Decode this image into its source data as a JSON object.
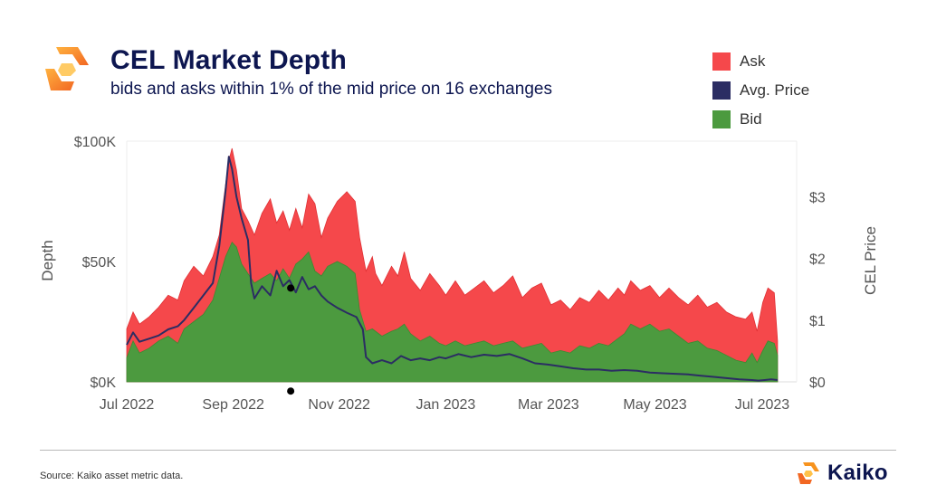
{
  "header": {
    "title": "CEL Market Depth",
    "subtitle": "bids and asks within 1% of the mid price on 16 exchanges"
  },
  "legend": [
    {
      "label": "Ask",
      "color": "#f5484b"
    },
    {
      "label": "Avg. Price",
      "color": "#2b2d63"
    },
    {
      "label": "Bid",
      "color": "#4c9a3f"
    }
  ],
  "footer": {
    "source": "Source: Kaiko asset metric data.",
    "brand": "Kaiko"
  },
  "chart_data": {
    "type": "area",
    "title": "CEL Market Depth",
    "subtitle": "bids and asks within 1% of the mid price on 16 exchanges",
    "ylabel": "Depth",
    "y2label": "CEL Price",
    "ylim": [
      0,
      100000
    ],
    "y2lim": [
      0,
      3.9
    ],
    "yticks": [
      {
        "value": 0,
        "label": "$0K"
      },
      {
        "value": 50000,
        "label": "$50K"
      },
      {
        "value": 100000,
        "label": "$100K"
      }
    ],
    "y2ticks": [
      {
        "value": 0,
        "label": "$0"
      },
      {
        "value": 1,
        "label": "$1"
      },
      {
        "value": 2,
        "label": "$2"
      },
      {
        "value": 3,
        "label": "$3"
      }
    ],
    "xlim": [
      2022.5,
      2023.55
    ],
    "xticks": [
      {
        "value": 2022.5,
        "label": "Jul 2022"
      },
      {
        "value": 2022.667,
        "label": "Sep 2022"
      },
      {
        "value": 2022.833,
        "label": "Nov 2022"
      },
      {
        "value": 2023.0,
        "label": "Jan 2023"
      },
      {
        "value": 2023.161,
        "label": "Mar 2023"
      },
      {
        "value": 2023.328,
        "label": "May 2023"
      },
      {
        "value": 2023.496,
        "label": "Jul 2023"
      }
    ],
    "series": [
      {
        "name": "Ask",
        "axis": "left",
        "color": "#f5484b",
        "points": [
          [
            2022.5,
            22000
          ],
          [
            2022.51,
            29000
          ],
          [
            2022.52,
            24000
          ],
          [
            2022.535,
            27000
          ],
          [
            2022.55,
            31000
          ],
          [
            2022.565,
            36000
          ],
          [
            2022.58,
            34000
          ],
          [
            2022.59,
            42000
          ],
          [
            2022.605,
            48000
          ],
          [
            2022.62,
            44000
          ],
          [
            2022.635,
            52000
          ],
          [
            2022.645,
            61000
          ],
          [
            2022.655,
            82000
          ],
          [
            2022.66,
            92000
          ],
          [
            2022.665,
            97000
          ],
          [
            2022.672,
            88000
          ],
          [
            2022.68,
            72000
          ],
          [
            2022.69,
            67000
          ],
          [
            2022.7,
            61000
          ],
          [
            2022.712,
            70000
          ],
          [
            2022.725,
            76000
          ],
          [
            2022.735,
            66000
          ],
          [
            2022.745,
            71000
          ],
          [
            2022.755,
            63000
          ],
          [
            2022.765,
            72000
          ],
          [
            2022.775,
            64000
          ],
          [
            2022.785,
            78000
          ],
          [
            2022.795,
            74000
          ],
          [
            2022.805,
            60000
          ],
          [
            2022.815,
            68000
          ],
          [
            2022.83,
            75000
          ],
          [
            2022.845,
            79000
          ],
          [
            2022.858,
            75000
          ],
          [
            2022.865,
            60000
          ],
          [
            2022.875,
            46000
          ],
          [
            2022.885,
            52000
          ],
          [
            2022.89,
            45000
          ],
          [
            2022.9,
            40000
          ],
          [
            2022.915,
            48000
          ],
          [
            2022.925,
            44000
          ],
          [
            2022.935,
            54000
          ],
          [
            2022.945,
            43000
          ],
          [
            2022.96,
            38000
          ],
          [
            2022.975,
            45000
          ],
          [
            2022.99,
            40000
          ],
          [
            2023.0,
            36000
          ],
          [
            2023.015,
            42000
          ],
          [
            2023.03,
            36000
          ],
          [
            2023.045,
            39000
          ],
          [
            2023.06,
            42000
          ],
          [
            2023.075,
            37000
          ],
          [
            2023.09,
            40000
          ],
          [
            2023.105,
            44000
          ],
          [
            2023.12,
            35000
          ],
          [
            2023.135,
            39000
          ],
          [
            2023.15,
            41000
          ],
          [
            2023.165,
            32000
          ],
          [
            2023.18,
            34000
          ],
          [
            2023.195,
            30000
          ],
          [
            2023.21,
            35000
          ],
          [
            2023.225,
            33000
          ],
          [
            2023.24,
            38000
          ],
          [
            2023.255,
            34000
          ],
          [
            2023.27,
            39000
          ],
          [
            2023.28,
            36000
          ],
          [
            2023.29,
            42000
          ],
          [
            2023.305,
            38000
          ],
          [
            2023.32,
            40000
          ],
          [
            2023.335,
            35000
          ],
          [
            2023.35,
            39000
          ],
          [
            2023.365,
            35000
          ],
          [
            2023.38,
            32000
          ],
          [
            2023.395,
            36000
          ],
          [
            2023.41,
            31000
          ],
          [
            2023.425,
            33000
          ],
          [
            2023.44,
            29000
          ],
          [
            2023.455,
            27000
          ],
          [
            2023.47,
            26000
          ],
          [
            2023.48,
            29000
          ],
          [
            2023.488,
            21000
          ],
          [
            2023.497,
            33000
          ],
          [
            2023.505,
            39000
          ],
          [
            2023.515,
            37000
          ],
          [
            2023.52,
            17000
          ]
        ]
      },
      {
        "name": "Bid",
        "axis": "left",
        "color": "#4c9a3f",
        "points": [
          [
            2022.5,
            10000
          ],
          [
            2022.51,
            17000
          ],
          [
            2022.52,
            12000
          ],
          [
            2022.535,
            14000
          ],
          [
            2022.55,
            17000
          ],
          [
            2022.565,
            19000
          ],
          [
            2022.58,
            16000
          ],
          [
            2022.59,
            22000
          ],
          [
            2022.605,
            25000
          ],
          [
            2022.62,
            28000
          ],
          [
            2022.635,
            34000
          ],
          [
            2022.645,
            43000
          ],
          [
            2022.655,
            52000
          ],
          [
            2022.665,
            58000
          ],
          [
            2022.672,
            56000
          ],
          [
            2022.68,
            49000
          ],
          [
            2022.69,
            45000
          ],
          [
            2022.7,
            41000
          ],
          [
            2022.712,
            43000
          ],
          [
            2022.725,
            45000
          ],
          [
            2022.735,
            42000
          ],
          [
            2022.745,
            47000
          ],
          [
            2022.755,
            43000
          ],
          [
            2022.765,
            49000
          ],
          [
            2022.775,
            51000
          ],
          [
            2022.785,
            54000
          ],
          [
            2022.795,
            46000
          ],
          [
            2022.805,
            44000
          ],
          [
            2022.815,
            48000
          ],
          [
            2022.83,
            50000
          ],
          [
            2022.845,
            48000
          ],
          [
            2022.858,
            45000
          ],
          [
            2022.865,
            30000
          ],
          [
            2022.875,
            21000
          ],
          [
            2022.885,
            22000
          ],
          [
            2022.9,
            19000
          ],
          [
            2022.915,
            21000
          ],
          [
            2022.925,
            22000
          ],
          [
            2022.935,
            24000
          ],
          [
            2022.945,
            20000
          ],
          [
            2022.96,
            17000
          ],
          [
            2022.975,
            19000
          ],
          [
            2022.99,
            16000
          ],
          [
            2023.0,
            15000
          ],
          [
            2023.015,
            17000
          ],
          [
            2023.03,
            15000
          ],
          [
            2023.045,
            16000
          ],
          [
            2023.06,
            17000
          ],
          [
            2023.075,
            15000
          ],
          [
            2023.09,
            16000
          ],
          [
            2023.105,
            17000
          ],
          [
            2023.12,
            14000
          ],
          [
            2023.135,
            15000
          ],
          [
            2023.15,
            16000
          ],
          [
            2023.165,
            12000
          ],
          [
            2023.18,
            13000
          ],
          [
            2023.195,
            12000
          ],
          [
            2023.21,
            15000
          ],
          [
            2023.225,
            14000
          ],
          [
            2023.24,
            16000
          ],
          [
            2023.255,
            15000
          ],
          [
            2023.27,
            18000
          ],
          [
            2023.28,
            20000
          ],
          [
            2023.29,
            24000
          ],
          [
            2023.305,
            22000
          ],
          [
            2023.32,
            24000
          ],
          [
            2023.335,
            21000
          ],
          [
            2023.35,
            22000
          ],
          [
            2023.365,
            19000
          ],
          [
            2023.38,
            16000
          ],
          [
            2023.395,
            17000
          ],
          [
            2023.41,
            14000
          ],
          [
            2023.425,
            13000
          ],
          [
            2023.44,
            11000
          ],
          [
            2023.455,
            9000
          ],
          [
            2023.47,
            8000
          ],
          [
            2023.48,
            12000
          ],
          [
            2023.488,
            8000
          ],
          [
            2023.497,
            13000
          ],
          [
            2023.505,
            17000
          ],
          [
            2023.515,
            16000
          ],
          [
            2023.52,
            11000
          ]
        ]
      },
      {
        "name": "Avg. Price",
        "axis": "right",
        "color": "#2b2d63",
        "points": [
          [
            2022.5,
            0.6
          ],
          [
            2022.51,
            0.8
          ],
          [
            2022.52,
            0.65
          ],
          [
            2022.535,
            0.7
          ],
          [
            2022.55,
            0.75
          ],
          [
            2022.565,
            0.85
          ],
          [
            2022.58,
            0.9
          ],
          [
            2022.59,
            1.0
          ],
          [
            2022.605,
            1.2
          ],
          [
            2022.62,
            1.4
          ],
          [
            2022.635,
            1.6
          ],
          [
            2022.645,
            2.2
          ],
          [
            2022.655,
            3.1
          ],
          [
            2022.66,
            3.65
          ],
          [
            2022.665,
            3.45
          ],
          [
            2022.672,
            3.0
          ],
          [
            2022.68,
            2.65
          ],
          [
            2022.69,
            2.3
          ],
          [
            2022.695,
            1.6
          ],
          [
            2022.7,
            1.35
          ],
          [
            2022.712,
            1.55
          ],
          [
            2022.725,
            1.4
          ],
          [
            2022.735,
            1.8
          ],
          [
            2022.745,
            1.55
          ],
          [
            2022.755,
            1.65
          ],
          [
            2022.765,
            1.45
          ],
          [
            2022.775,
            1.7
          ],
          [
            2022.785,
            1.5
          ],
          [
            2022.795,
            1.55
          ],
          [
            2022.805,
            1.4
          ],
          [
            2022.815,
            1.3
          ],
          [
            2022.83,
            1.2
          ],
          [
            2022.845,
            1.12
          ],
          [
            2022.86,
            1.05
          ],
          [
            2022.87,
            0.85
          ],
          [
            2022.875,
            0.4
          ],
          [
            2022.885,
            0.3
          ],
          [
            2022.9,
            0.35
          ],
          [
            2022.915,
            0.3
          ],
          [
            2022.93,
            0.42
          ],
          [
            2022.945,
            0.35
          ],
          [
            2022.96,
            0.38
          ],
          [
            2022.975,
            0.35
          ],
          [
            2022.99,
            0.4
          ],
          [
            2023.0,
            0.38
          ],
          [
            2023.02,
            0.45
          ],
          [
            2023.04,
            0.4
          ],
          [
            2023.06,
            0.44
          ],
          [
            2023.08,
            0.42
          ],
          [
            2023.1,
            0.45
          ],
          [
            2023.12,
            0.38
          ],
          [
            2023.14,
            0.3
          ],
          [
            2023.16,
            0.28
          ],
          [
            2023.18,
            0.25
          ],
          [
            2023.2,
            0.22
          ],
          [
            2023.22,
            0.2
          ],
          [
            2023.24,
            0.2
          ],
          [
            2023.26,
            0.18
          ],
          [
            2023.28,
            0.19
          ],
          [
            2023.3,
            0.18
          ],
          [
            2023.32,
            0.15
          ],
          [
            2023.34,
            0.14
          ],
          [
            2023.36,
            0.13
          ],
          [
            2023.38,
            0.12
          ],
          [
            2023.4,
            0.1
          ],
          [
            2023.42,
            0.08
          ],
          [
            2023.44,
            0.06
          ],
          [
            2023.46,
            0.04
          ],
          [
            2023.48,
            0.03
          ],
          [
            2023.49,
            0.02
          ],
          [
            2023.5,
            0.03
          ],
          [
            2023.51,
            0.04
          ],
          [
            2023.52,
            0.03
          ]
        ]
      }
    ],
    "markers": [
      {
        "x": 2022.757,
        "axis": "right",
        "y": 1.52
      },
      {
        "x": 2022.757,
        "axis": "right",
        "y": -0.15
      }
    ]
  }
}
